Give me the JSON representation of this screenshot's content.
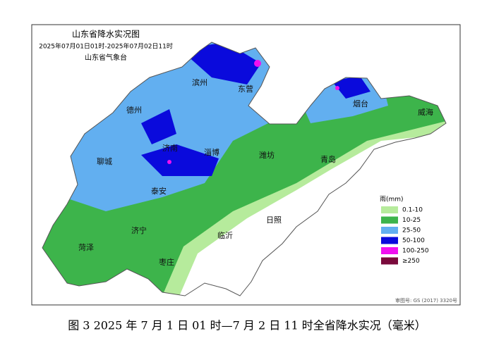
{
  "map": {
    "title": "山东省降水实况图",
    "period": "2025年07月01日01时-2025年07月02日11时",
    "source": "山东省气象台",
    "cities": [
      "滨州",
      "东营",
      "德州",
      "烟台",
      "威海",
      "济南",
      "淄博",
      "潍坊",
      "聊城",
      "青岛",
      "泰安",
      "济宁",
      "日照",
      "临沂",
      "菏泽",
      "枣庄"
    ],
    "legend": {
      "title": "雨(mm)",
      "items": [
        {
          "label": "0.1-10",
          "color": "#b6eb9c"
        },
        {
          "label": "10-25",
          "color": "#3db44b"
        },
        {
          "label": "25-50",
          "color": "#62aff0"
        },
        {
          "label": "50-100",
          "color": "#0a0adc"
        },
        {
          "label": "100-250",
          "color": "#f010f0"
        },
        {
          "label": "≥250",
          "color": "#7a0a3c"
        }
      ]
    },
    "review_number": "审图号: GS (2017) 3320号",
    "caption": "图 3 2025 年 7 月 1 日 01 时—7 月 2 日 11 时全省降水实况（毫米）"
  }
}
